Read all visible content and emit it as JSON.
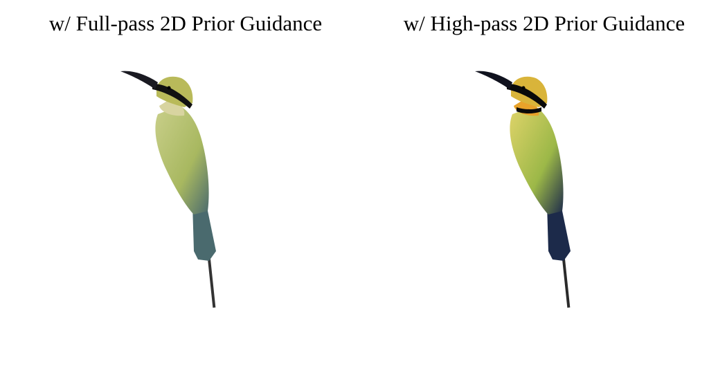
{
  "panels": [
    {
      "caption": "w/ Full-pass 2D Prior Guidance",
      "image_icon": "bee-eater-bird-render-icon",
      "colors": {
        "body": "#a8b860",
        "belly": "#c9cf8a",
        "head": "#b9ba5a",
        "tail": "#4a6a6e",
        "throat": "#d8d4a0",
        "mask": "#111111",
        "beak": "#1a1a22",
        "stick": "#333333"
      }
    },
    {
      "caption": "w/ High-pass 2D Prior Guidance",
      "image_icon": "bee-eater-bird-render-icon",
      "colors": {
        "body": "#9cb848",
        "belly": "#e0d46a",
        "head": "#d9b43a",
        "tail": "#1c2a4a",
        "throat": "#e8a22a",
        "mask": "#0a0a0a",
        "beak": "#10121e",
        "stick": "#2a2a2a"
      }
    }
  ]
}
